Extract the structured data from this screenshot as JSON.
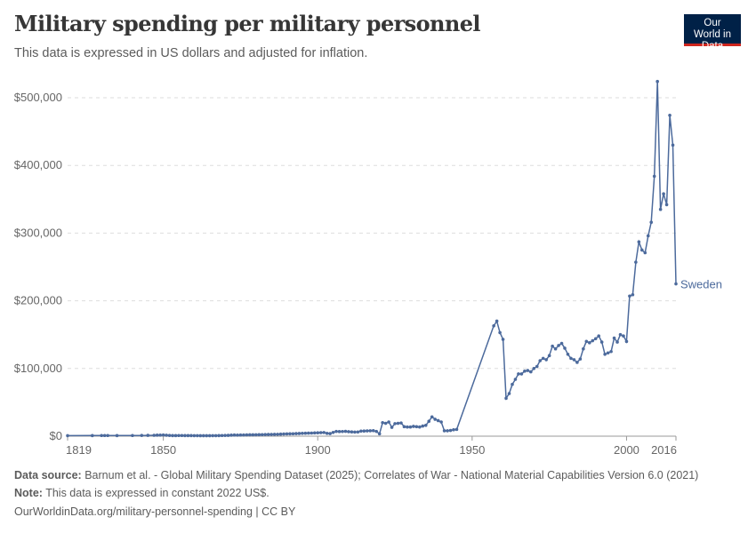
{
  "header": {
    "title": "Military spending per military personnel",
    "subtitle": "This data is expressed in US dollars and adjusted for inflation.",
    "logo_text": "Our World in Data"
  },
  "footer": {
    "source_label": "Data source:",
    "source_text": " Barnum et al. - Global Military Spending Dataset (2025); Correlates of War - National Material Capabilities Version 6.0 (2021)",
    "note_label": "Note:",
    "note_text": " This data is expressed in constant 2022 US$.",
    "link": "OurWorldinData.org/military-personnel-spending | CC BY"
  },
  "chart_data": {
    "type": "line",
    "title": "Military spending per military personnel",
    "xlim": [
      1819,
      2016
    ],
    "ylim": [
      0,
      500000
    ],
    "x_ticks": [
      1819,
      1850,
      1900,
      1950,
      2000,
      2016
    ],
    "y_ticks": [
      0,
      100000,
      200000,
      300000,
      400000,
      500000
    ],
    "y_tick_labels": [
      "$0",
      "$100,000",
      "$200,000",
      "$300,000",
      "$400,000",
      "$500,000"
    ],
    "x_tick_labels": [
      "1819",
      "1850",
      "1900",
      "1950",
      "2000",
      "2016"
    ],
    "grid": "horizontal dashed",
    "series": [
      {
        "name": "Sweden",
        "color": "#4c6a9c",
        "points": [
          [
            1819,
            800
          ],
          [
            1827,
            900
          ],
          [
            1830,
            1000
          ],
          [
            1831,
            1000
          ],
          [
            1832,
            1000
          ],
          [
            1835,
            900
          ],
          [
            1840,
            1000
          ],
          [
            1843,
            1100
          ],
          [
            1845,
            1200
          ],
          [
            1847,
            1300
          ],
          [
            1848,
            1500
          ],
          [
            1849,
            1600
          ],
          [
            1850,
            1800
          ],
          [
            1851,
            1400
          ],
          [
            1852,
            1100
          ],
          [
            1853,
            900
          ],
          [
            1854,
            900
          ],
          [
            1855,
            1000
          ],
          [
            1856,
            1000
          ],
          [
            1857,
            900
          ],
          [
            1858,
            900
          ],
          [
            1859,
            900
          ],
          [
            1860,
            800
          ],
          [
            1861,
            800
          ],
          [
            1862,
            700
          ],
          [
            1863,
            700
          ],
          [
            1864,
            700
          ],
          [
            1865,
            700
          ],
          [
            1866,
            800
          ],
          [
            1867,
            800
          ],
          [
            1868,
            900
          ],
          [
            1869,
            1000
          ],
          [
            1870,
            1100
          ],
          [
            1871,
            1200
          ],
          [
            1872,
            1500
          ],
          [
            1873,
            1700
          ],
          [
            1874,
            1600
          ],
          [
            1875,
            1700
          ],
          [
            1876,
            1800
          ],
          [
            1877,
            1900
          ],
          [
            1878,
            2000
          ],
          [
            1879,
            2000
          ],
          [
            1880,
            2100
          ],
          [
            1881,
            2200
          ],
          [
            1882,
            2300
          ],
          [
            1883,
            2400
          ],
          [
            1884,
            2500
          ],
          [
            1885,
            2600
          ],
          [
            1886,
            2700
          ],
          [
            1887,
            2800
          ],
          [
            1888,
            3000
          ],
          [
            1889,
            3200
          ],
          [
            1890,
            3400
          ],
          [
            1891,
            3500
          ],
          [
            1892,
            3600
          ],
          [
            1893,
            3800
          ],
          [
            1894,
            4000
          ],
          [
            1895,
            4200
          ],
          [
            1896,
            4300
          ],
          [
            1897,
            4500
          ],
          [
            1898,
            4600
          ],
          [
            1899,
            4800
          ],
          [
            1900,
            5000
          ],
          [
            1901,
            5200
          ],
          [
            1902,
            5400
          ],
          [
            1903,
            4200
          ],
          [
            1904,
            3800
          ],
          [
            1905,
            5500
          ],
          [
            1906,
            7000
          ],
          [
            1907,
            6800
          ],
          [
            1908,
            6900
          ],
          [
            1909,
            7200
          ],
          [
            1910,
            6600
          ],
          [
            1911,
            6300
          ],
          [
            1912,
            6000
          ],
          [
            1913,
            6200
          ],
          [
            1914,
            7500
          ],
          [
            1915,
            7600
          ],
          [
            1916,
            7800
          ],
          [
            1917,
            8000
          ],
          [
            1918,
            8200
          ],
          [
            1919,
            7000
          ],
          [
            1920,
            3500
          ],
          [
            1921,
            20000
          ],
          [
            1922,
            19000
          ],
          [
            1923,
            21000
          ],
          [
            1924,
            13000
          ],
          [
            1925,
            18500
          ],
          [
            1926,
            19000
          ],
          [
            1927,
            19500
          ],
          [
            1928,
            14000
          ],
          [
            1929,
            13500
          ],
          [
            1930,
            13500
          ],
          [
            1931,
            14500
          ],
          [
            1932,
            14000
          ],
          [
            1933,
            13500
          ],
          [
            1934,
            15000
          ],
          [
            1935,
            16000
          ],
          [
            1936,
            22000
          ],
          [
            1937,
            28500
          ],
          [
            1938,
            25000
          ],
          [
            1939,
            23000
          ],
          [
            1940,
            21000
          ],
          [
            1941,
            8000
          ],
          [
            1942,
            8000
          ],
          [
            1943,
            8500
          ],
          [
            1944,
            9500
          ],
          [
            1945,
            10000
          ],
          [
            1957,
            163000
          ],
          [
            1958,
            170000
          ],
          [
            1959,
            153000
          ],
          [
            1960,
            143000
          ],
          [
            1961,
            56000
          ],
          [
            1962,
            63000
          ],
          [
            1963,
            76500
          ],
          [
            1964,
            84000
          ],
          [
            1965,
            92000
          ],
          [
            1966,
            92000
          ],
          [
            1967,
            96000
          ],
          [
            1968,
            97000
          ],
          [
            1969,
            95000
          ],
          [
            1970,
            100000
          ],
          [
            1971,
            103000
          ],
          [
            1972,
            111500
          ],
          [
            1973,
            115000
          ],
          [
            1974,
            113000
          ],
          [
            1975,
            119000
          ],
          [
            1976,
            133000
          ],
          [
            1977,
            129000
          ],
          [
            1978,
            134000
          ],
          [
            1979,
            137000
          ],
          [
            1980,
            130000
          ],
          [
            1981,
            121000
          ],
          [
            1982,
            115000
          ],
          [
            1983,
            113000
          ],
          [
            1984,
            109000
          ],
          [
            1985,
            114000
          ],
          [
            1986,
            129000
          ],
          [
            1987,
            140000
          ],
          [
            1988,
            138000
          ],
          [
            1989,
            141000
          ],
          [
            1990,
            144000
          ],
          [
            1991,
            148000
          ],
          [
            1992,
            139000
          ],
          [
            1993,
            121000
          ],
          [
            1994,
            123000
          ],
          [
            1995,
            125000
          ],
          [
            1996,
            145000
          ],
          [
            1997,
            139000
          ],
          [
            1998,
            150000
          ],
          [
            1999,
            148000
          ],
          [
            2000,
            140000
          ],
          [
            2001,
            207000
          ],
          [
            2002,
            209000
          ],
          [
            2003,
            257000
          ],
          [
            2004,
            287000
          ],
          [
            2005,
            275000
          ],
          [
            2006,
            271000
          ],
          [
            2007,
            296000
          ],
          [
            2008,
            316000
          ],
          [
            2009,
            384000
          ],
          [
            2010,
            524000
          ],
          [
            2011,
            335000
          ],
          [
            2012,
            358000
          ],
          [
            2013,
            342000
          ],
          [
            2014,
            474000
          ],
          [
            2015,
            430000
          ],
          [
            2016,
            225000
          ]
        ]
      }
    ]
  }
}
